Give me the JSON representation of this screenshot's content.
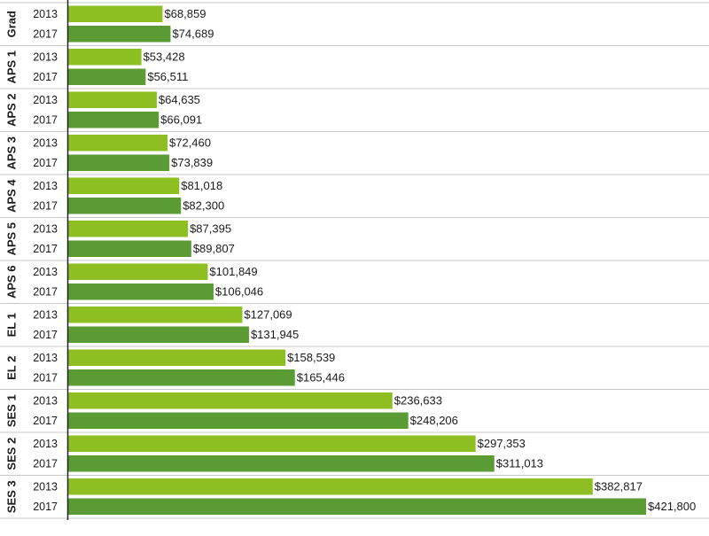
{
  "chart_data": {
    "type": "bar",
    "orientation": "horizontal",
    "title": "",
    "xlabel": "",
    "ylabel": "",
    "grid": false,
    "legend": "none",
    "colors": {
      "2013": "#8dbe22",
      "2017": "#5a9b34",
      "separator": "#c9c9c9",
      "axis": "#222222"
    },
    "groups": [
      {
        "label": "Grad",
        "bars": [
          {
            "year": "2013",
            "value": 68859,
            "text": "$68,859"
          },
          {
            "year": "2017",
            "value": 74689,
            "text": "$74,689"
          }
        ]
      },
      {
        "label": "APS 1",
        "bars": [
          {
            "year": "2013",
            "value": 53428,
            "text": "$53,428"
          },
          {
            "year": "2017",
            "value": 56511,
            "text": "$56,511"
          }
        ]
      },
      {
        "label": "APS 2",
        "bars": [
          {
            "year": "2013",
            "value": 64635,
            "text": "$64,635"
          },
          {
            "year": "2017",
            "value": 66091,
            "text": "$66,091"
          }
        ]
      },
      {
        "label": "APS 3",
        "bars": [
          {
            "year": "2013",
            "value": 72460,
            "text": "$72,460"
          },
          {
            "year": "2017",
            "value": 73839,
            "text": "$73,839"
          }
        ]
      },
      {
        "label": "APS 4",
        "bars": [
          {
            "year": "2013",
            "value": 81018,
            "text": "$81,018"
          },
          {
            "year": "2017",
            "value": 82300,
            "text": "$82,300"
          }
        ]
      },
      {
        "label": "APS 5",
        "bars": [
          {
            "year": "2013",
            "value": 87395,
            "text": "$87,395"
          },
          {
            "year": "2017",
            "value": 89807,
            "text": "$89,807"
          }
        ]
      },
      {
        "label": "APS 6",
        "bars": [
          {
            "year": "2013",
            "value": 101849,
            "text": "$101,849"
          },
          {
            "year": "2017",
            "value": 106046,
            "text": "$106,046"
          }
        ]
      },
      {
        "label": "EL 1",
        "bars": [
          {
            "year": "2013",
            "value": 127069,
            "text": "$127,069"
          },
          {
            "year": "2017",
            "value": 131945,
            "text": "$131,945"
          }
        ]
      },
      {
        "label": "EL 2",
        "bars": [
          {
            "year": "2013",
            "value": 158539,
            "text": "$158,539"
          },
          {
            "year": "2017",
            "value": 165446,
            "text": "$165,446"
          }
        ]
      },
      {
        "label": "SES 1",
        "bars": [
          {
            "year": "2013",
            "value": 236633,
            "text": "$236,633"
          },
          {
            "year": "2017",
            "value": 248206,
            "text": "$248,206"
          }
        ]
      },
      {
        "label": "SES 2",
        "bars": [
          {
            "year": "2013",
            "value": 297353,
            "text": "$297,353"
          },
          {
            "year": "2017",
            "value": 311013,
            "text": "$311,013"
          }
        ]
      },
      {
        "label": "SES 3",
        "bars": [
          {
            "year": "2013",
            "value": 382817,
            "text": "$382,817"
          },
          {
            "year": "2017",
            "value": 421800,
            "text": "$421,800"
          }
        ]
      }
    ]
  }
}
